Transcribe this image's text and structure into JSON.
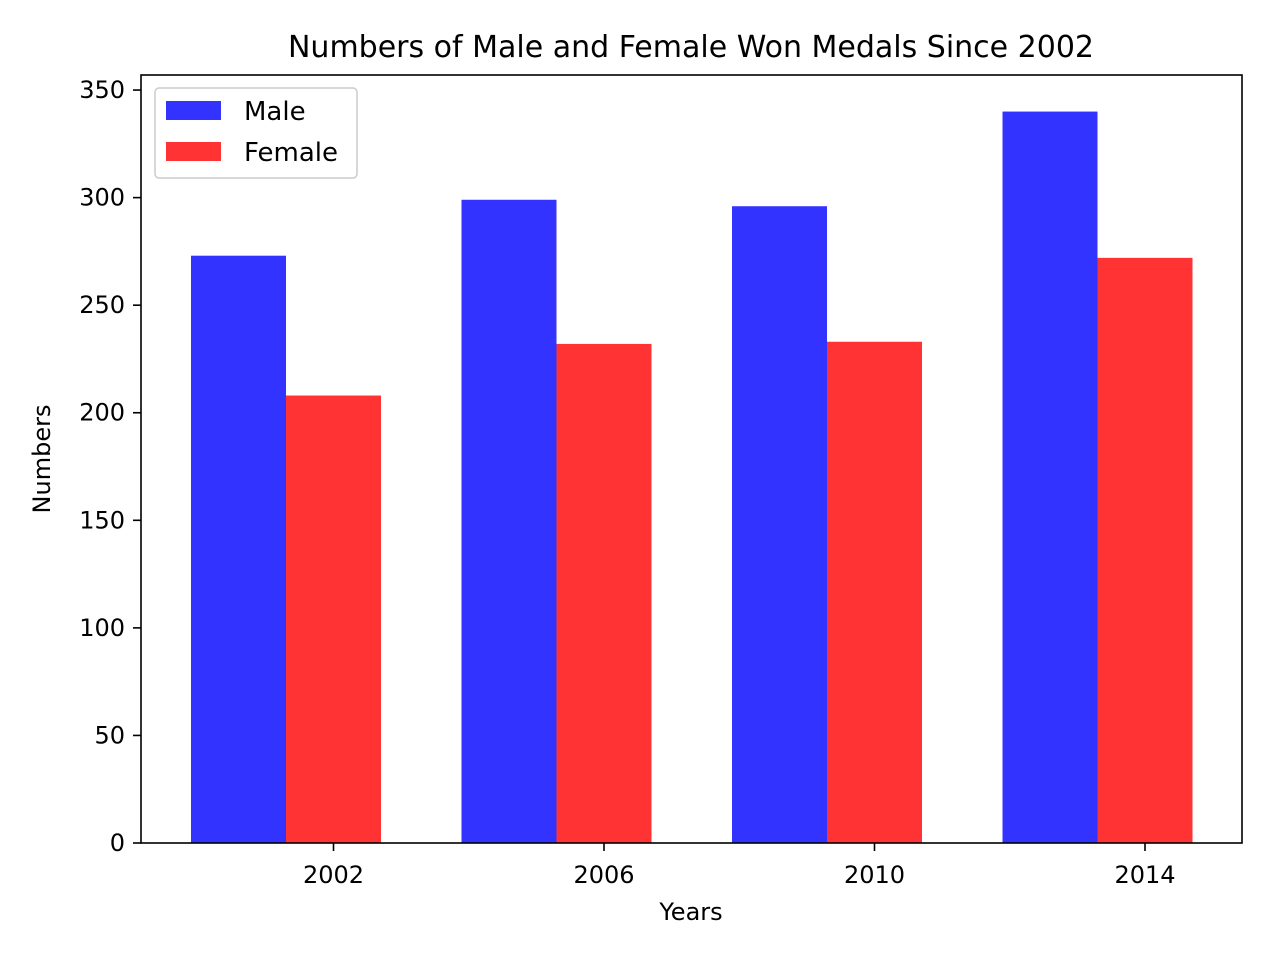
{
  "chart_data": {
    "type": "bar",
    "title": "Numbers of Male and Female Won Medals Since 2002",
    "xlabel": "Years",
    "ylabel": "Numbers",
    "categories": [
      "2002",
      "2006",
      "2010",
      "2014"
    ],
    "series": [
      {
        "name": "Male",
        "color": "#3333ff",
        "values": [
          273,
          299,
          296,
          340
        ]
      },
      {
        "name": "Female",
        "color": "#ff3333",
        "values": [
          208,
          232,
          233,
          272
        ]
      }
    ],
    "ylim": [
      0,
      357
    ],
    "yticks": [
      0,
      50,
      100,
      150,
      200,
      250,
      300,
      350
    ],
    "grid": false,
    "legend_position": "top-left"
  }
}
